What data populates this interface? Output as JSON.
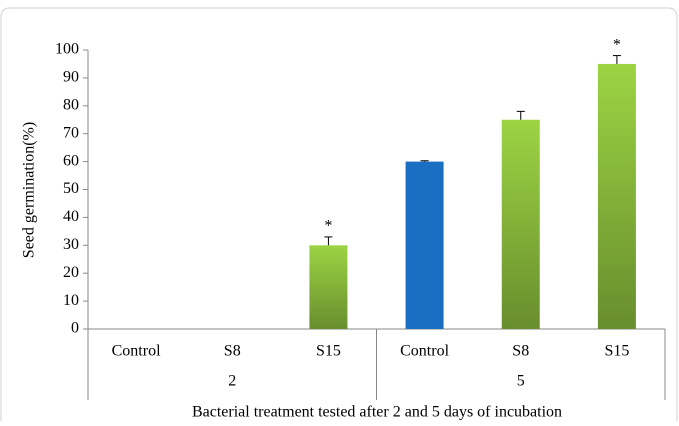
{
  "chart_data": {
    "type": "bar",
    "y_label": "Seed germination(%)",
    "x_label": "Bacterial treatment tested after 2 and 5 days of incubation",
    "categories": [
      "Control",
      "S8",
      "S15",
      "Control",
      "S8",
      "S15"
    ],
    "category_groups": [
      "2",
      "5"
    ],
    "values": [
      0,
      0,
      30,
      60,
      75,
      95
    ],
    "errors": [
      0,
      0,
      3,
      0.3,
      3,
      3
    ],
    "colors": [
      "#8bbd3c",
      "#8bbd3c",
      "#8bbd3c",
      "#1a6fc2",
      "#8bbd3c",
      "#8bbd3c"
    ],
    "significant": [
      false,
      false,
      true,
      false,
      false,
      true
    ],
    "significance_mark": "*",
    "ylim": [
      0,
      100
    ],
    "yticks": [
      0,
      10,
      20,
      30,
      40,
      50,
      60,
      70,
      80,
      90,
      100
    ],
    "grid": false
  }
}
